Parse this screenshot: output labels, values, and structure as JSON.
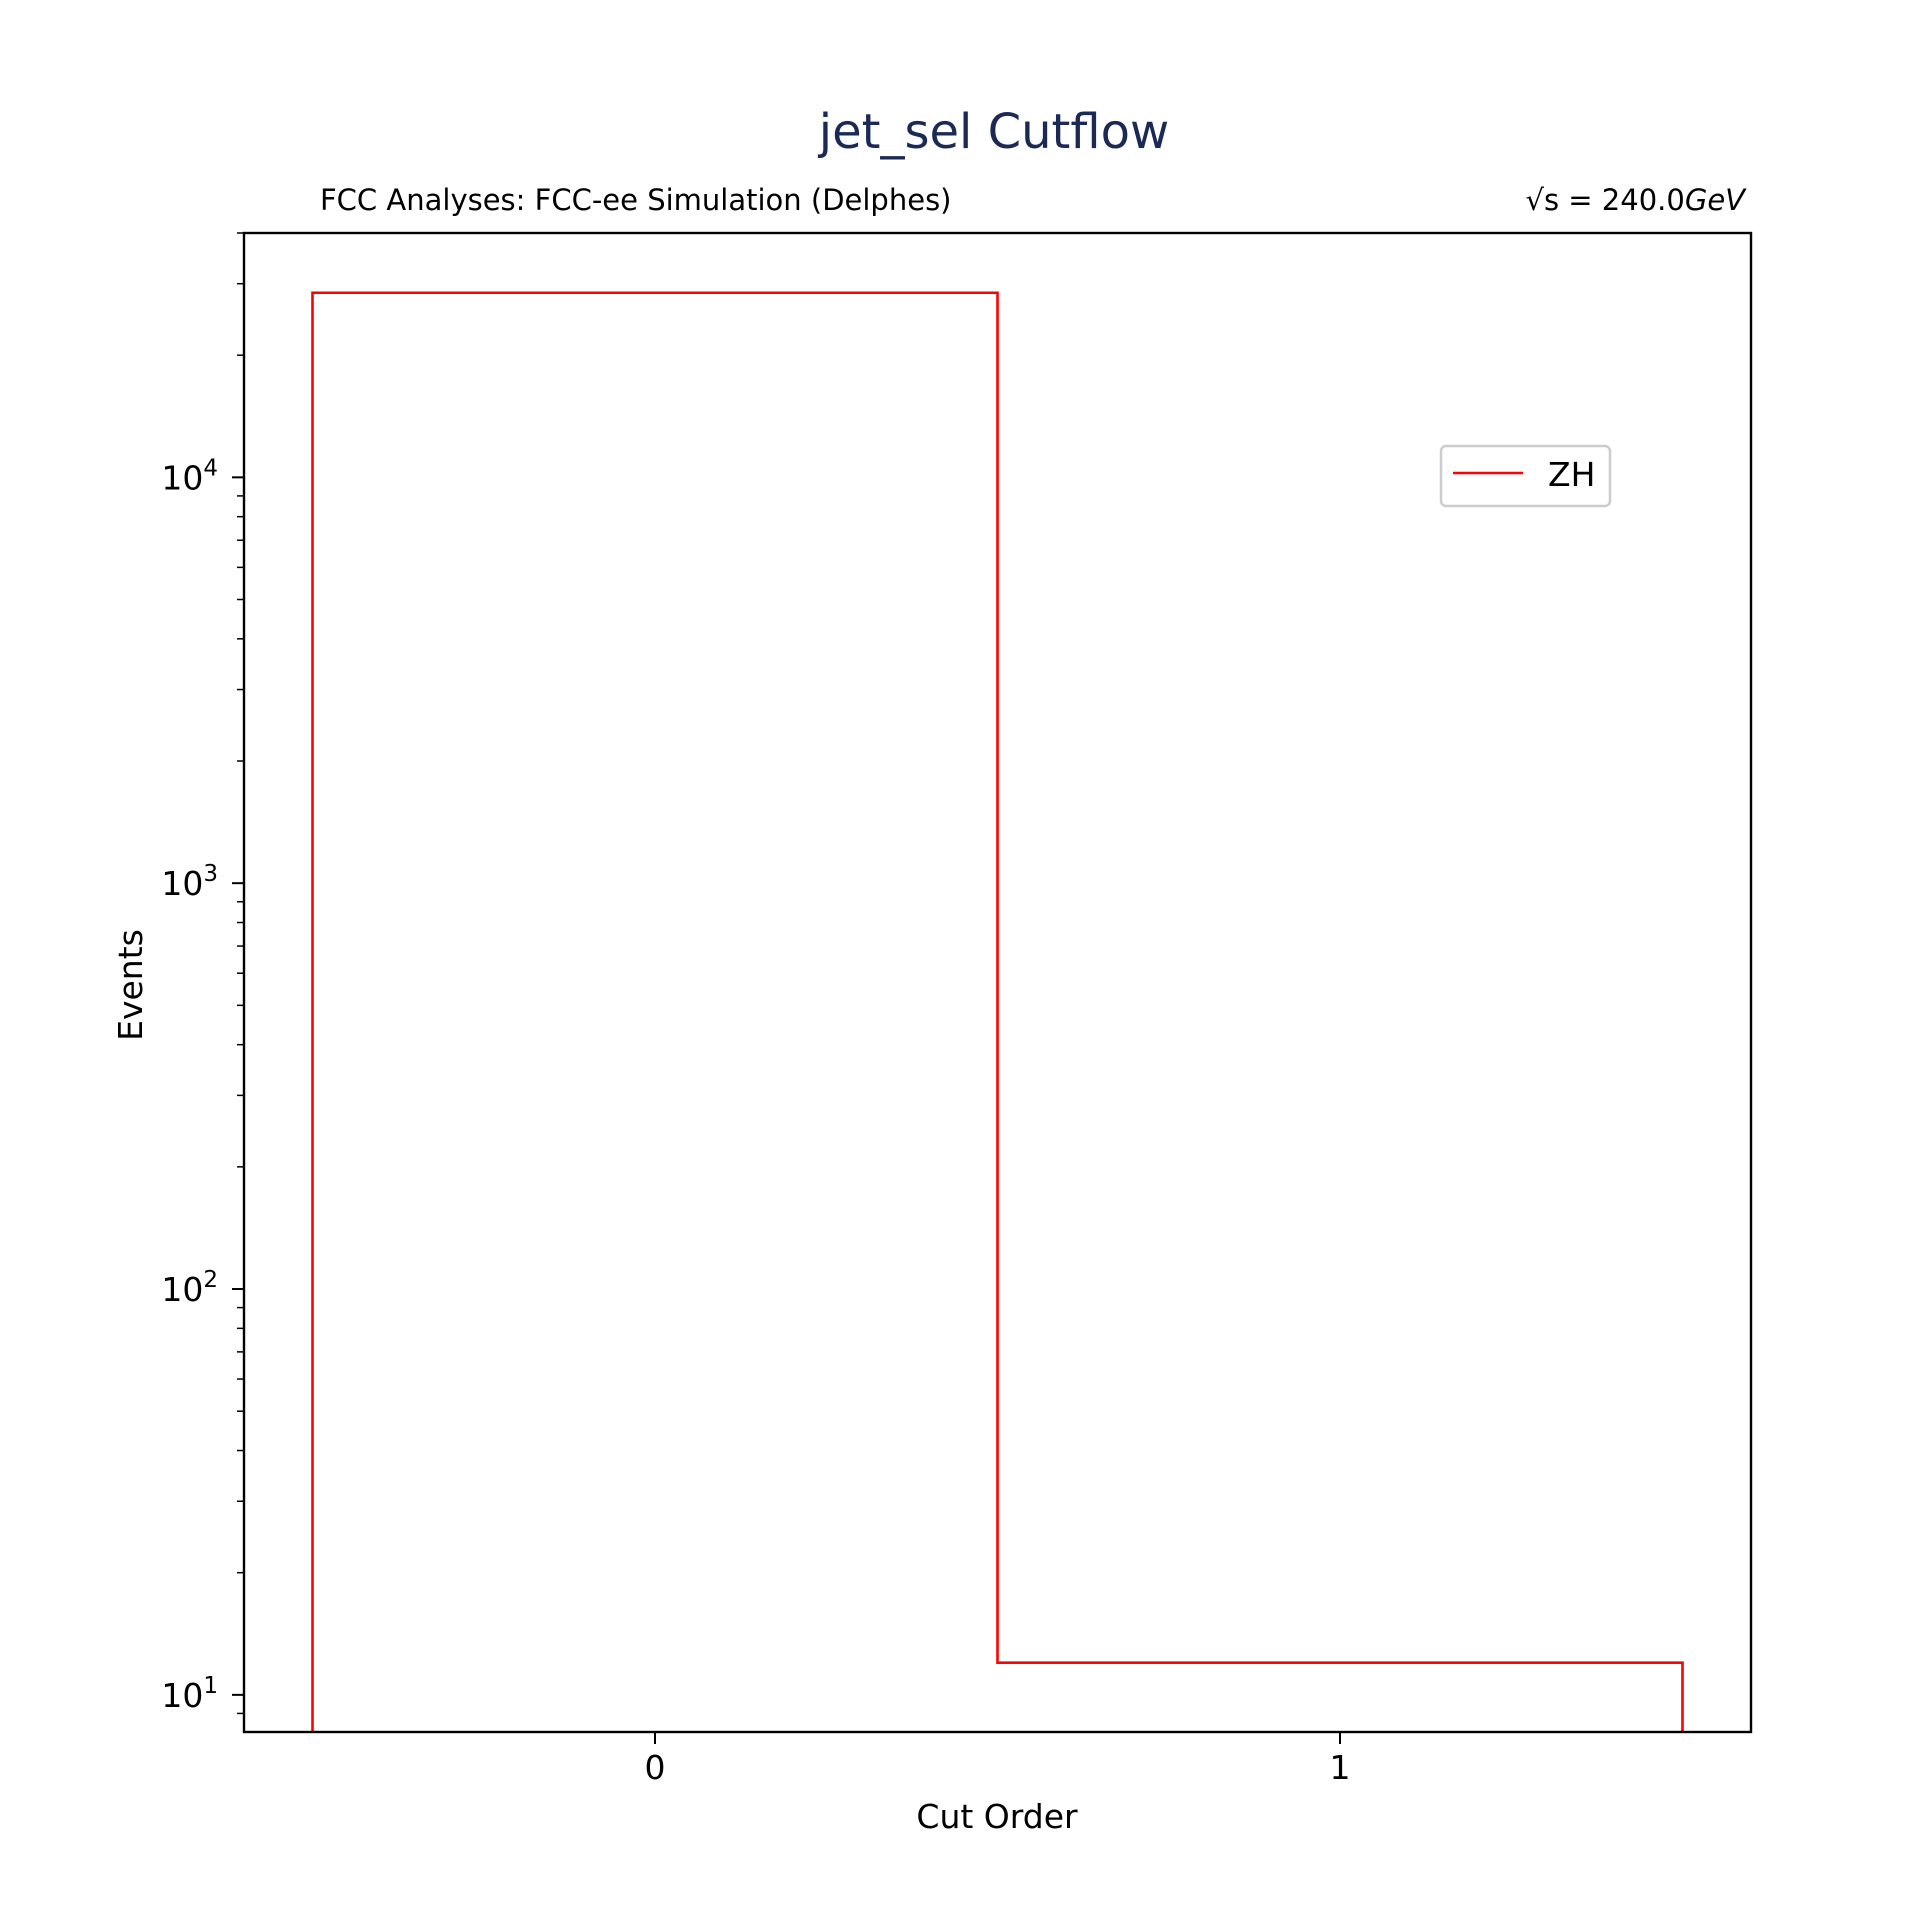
{
  "chart_data": {
    "type": "histogram-step",
    "title": "jet_sel Cutflow",
    "subtitle_left": "FCC Analyses: FCC-ee Simulation (Delphes)",
    "subtitle_right_prefix": "√s = 240.0",
    "subtitle_right_unit": "GeV",
    "xlabel": "Cut Order",
    "ylabel": "Events",
    "yscale": "log",
    "xlim": [
      -0.6,
      1.6
    ],
    "ylim": [
      8.1,
      40000
    ],
    "x_ticks": [
      0,
      1
    ],
    "x_tick_labels": [
      "0",
      "1"
    ],
    "y_major_ticks": [
      10,
      100,
      1000,
      10000
    ],
    "y_tick_labels": [
      {
        "base": "10",
        "exp": "1"
      },
      {
        "base": "10",
        "exp": "2"
      },
      {
        "base": "10",
        "exp": "3"
      },
      {
        "base": "10",
        "exp": "4"
      }
    ],
    "grid": false,
    "legend_position": "upper-right",
    "series": [
      {
        "name": "ZH",
        "color": "#ff0000",
        "bin_edges": [
          -0.5,
          0.5,
          1.5
        ],
        "values": [
          28500,
          12
        ]
      }
    ]
  }
}
